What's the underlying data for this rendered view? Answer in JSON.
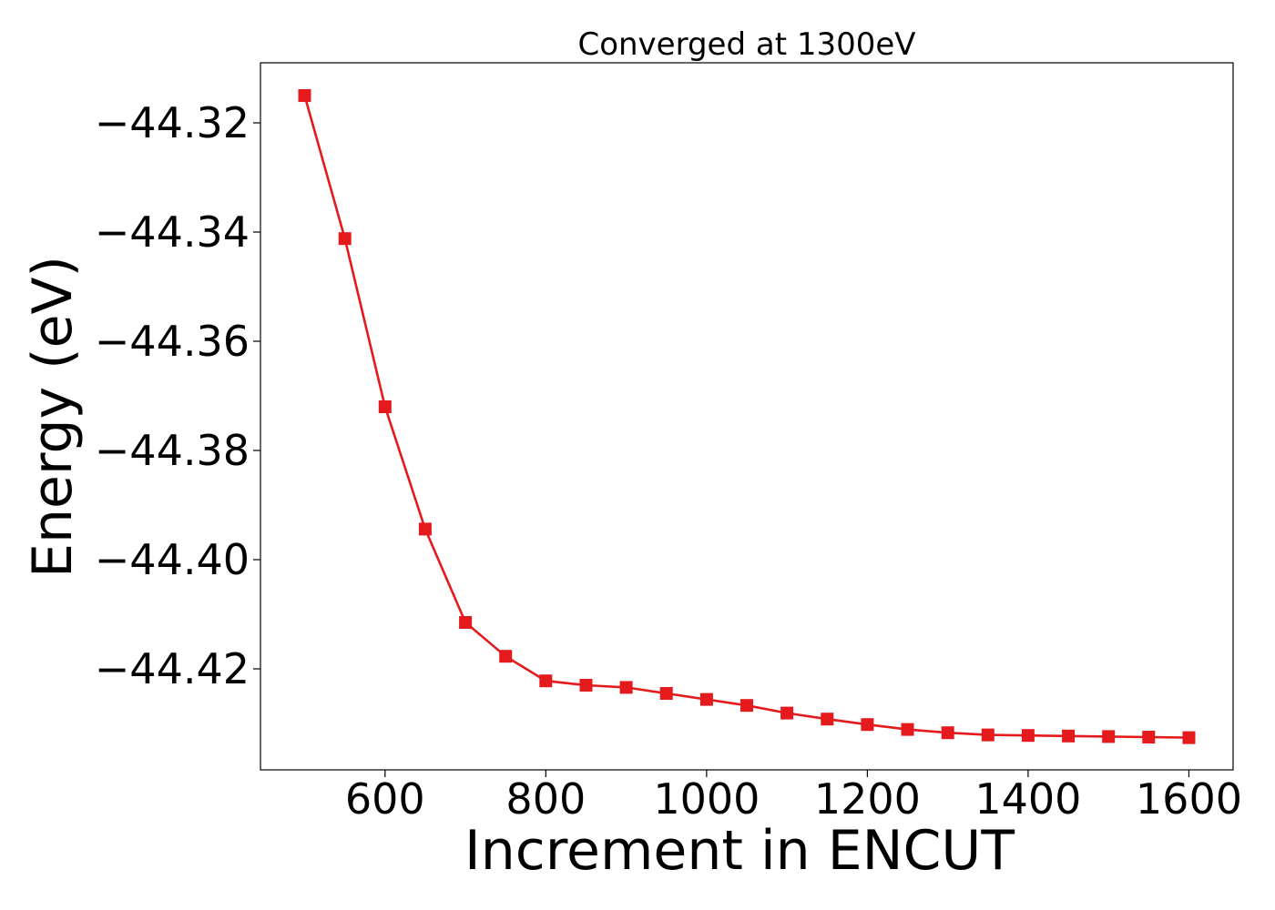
{
  "chart_data": {
    "type": "line",
    "title": "Converged at 1300eV",
    "xlabel": "Increment in ENCUT",
    "ylabel": "Energy (eV)",
    "xlim": [
      445,
      1655
    ],
    "ylim": [
      -44.4385,
      -44.309
    ],
    "xticks": [
      600,
      800,
      1000,
      1200,
      1400,
      1600
    ],
    "xtick_labels": [
      "600",
      "800",
      "1000",
      "1200",
      "1400",
      "1600"
    ],
    "yticks": [
      -44.32,
      -44.34,
      -44.36,
      -44.38,
      -44.4,
      -44.42
    ],
    "ytick_labels": [
      "−44.32",
      "−44.34",
      "−44.36",
      "−44.38",
      "−44.40",
      "−44.42"
    ],
    "grid": false,
    "legend": "none",
    "series": [
      {
        "color": "#e41a1c",
        "marker": "square",
        "x": [
          500,
          550,
          600,
          650,
          700,
          750,
          800,
          850,
          900,
          950,
          1000,
          1050,
          1100,
          1150,
          1200,
          1250,
          1300,
          1350,
          1400,
          1450,
          1500,
          1550,
          1600
        ],
        "y": [
          -44.315,
          -44.3412,
          -44.372,
          -44.3944,
          -44.4115,
          -44.4177,
          -44.4222,
          -44.423,
          -44.4234,
          -44.4245,
          -44.4256,
          -44.4267,
          -44.4281,
          -44.4292,
          -44.4302,
          -44.4311,
          -44.4317,
          -44.4321,
          -44.4322,
          -44.4323,
          -44.4324,
          -44.4325,
          -44.4326
        ]
      }
    ]
  }
}
